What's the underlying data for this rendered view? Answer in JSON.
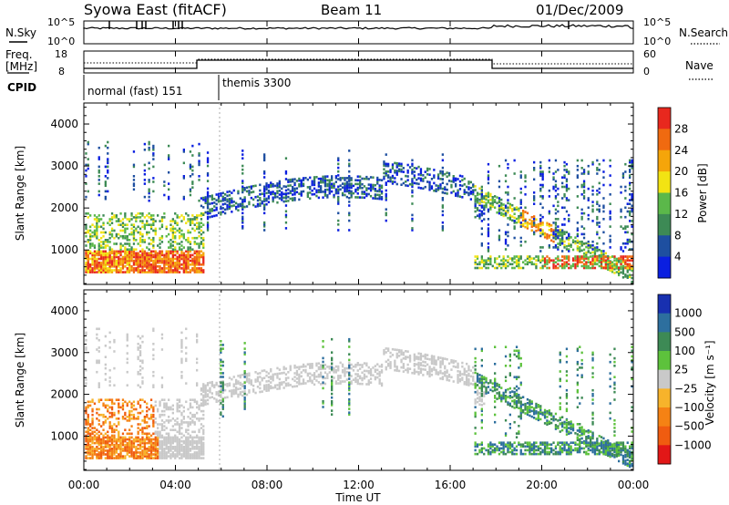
{
  "header": {
    "station": "Syowa East (fitACF)",
    "beam": "Beam 11",
    "date": "01/Dec/2009"
  },
  "top_panel": {
    "left_label": "N.Sky",
    "right_label": "N.Search",
    "left_ticks": [
      "10^5",
      "10^0"
    ],
    "right_ticks": [
      "10^5",
      "10^0"
    ]
  },
  "freq_panel": {
    "left_label_1": "Freq.",
    "left_label_2": "[MHz]",
    "right_label": "Nave",
    "left_ticks": [
      "18",
      "8"
    ],
    "right_ticks": [
      "60",
      "0"
    ]
  },
  "cpid": {
    "label": "CPID",
    "modes": [
      "normal (fast) 151",
      "themis 3300"
    ]
  },
  "chart_data": [
    {
      "type": "heatmap",
      "panel": "power",
      "xlabel": "Time UT",
      "ylabel": "Slant Range [km]",
      "x_range_hours": [
        0,
        24
      ],
      "ylim": [
        180,
        4500
      ],
      "y_ticks": [
        1000,
        2000,
        3000,
        4000
      ],
      "colorbar_label": "Power [dB]",
      "colorbar_ticks": [
        "28",
        "24",
        "20",
        "16",
        "12",
        "8",
        "4"
      ],
      "colorbar_colors": [
        "#e8281e",
        "#f06a10",
        "#f5a50a",
        "#f2e313",
        "#5bb84a",
        "#3d8a55",
        "#1e4fa0",
        "#0a1fe0"
      ]
    },
    {
      "type": "heatmap",
      "panel": "velocity",
      "xlabel": "Time UT",
      "ylabel": "Slant Range [km]",
      "x_range_hours": [
        0,
        24
      ],
      "ylim": [
        180,
        4500
      ],
      "y_ticks": [
        1000,
        2000,
        3000,
        4000
      ],
      "colorbar_label": "Velocity [m s⁻¹]",
      "colorbar_ticks": [
        "1000",
        "500",
        "100",
        "25",
        "−25",
        "−100",
        "−500",
        "−1000"
      ],
      "colorbar_colors": [
        "#1830b0",
        "#2d6f9e",
        "#3d8a55",
        "#5dc23c",
        "#c9c9c9",
        "#f7b32b",
        "#f58214",
        "#f05c10",
        "#e21717"
      ]
    }
  ],
  "x_axis": {
    "ticks": [
      "00:00",
      "04:00",
      "08:00",
      "12:00",
      "16:00",
      "20:00",
      "00:00"
    ],
    "label": "Time UT"
  }
}
